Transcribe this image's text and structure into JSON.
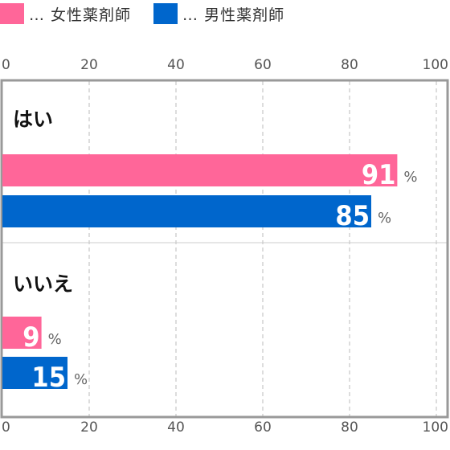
{
  "legend": [
    {
      "label": "… 女性薬剤師",
      "color": "#ff6699"
    },
    {
      "label": "… 男性薬剤師",
      "color": "#0066cc"
    }
  ],
  "chart_data": {
    "type": "bar",
    "orientation": "horizontal",
    "categories": [
      "はい",
      "いいえ"
    ],
    "series": [
      {
        "name": "女性薬剤師",
        "color": "#ff6699",
        "values": [
          91,
          9
        ]
      },
      {
        "name": "男性薬剤師",
        "color": "#0066cc",
        "values": [
          85,
          15
        ]
      }
    ],
    "xlim": [
      0,
      100
    ],
    "xticks": [
      "0",
      "20",
      "40",
      "60",
      "80",
      "100"
    ],
    "unit": "%",
    "grid": true,
    "legend_position": "top-left"
  }
}
